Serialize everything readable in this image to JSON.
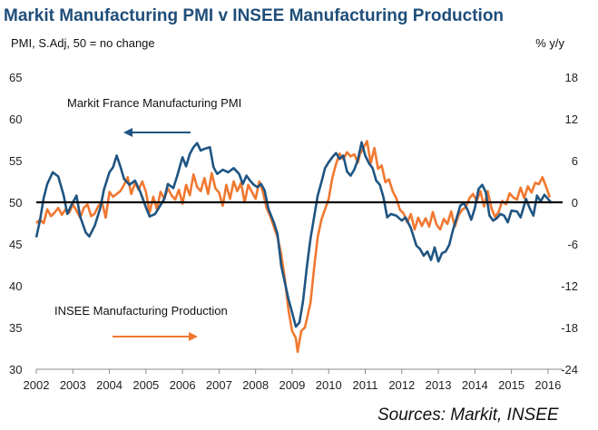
{
  "chart_data": {
    "type": "line",
    "title": "Markit Manufacturing PMI v INSEE Manufacturing Production",
    "left_axis_label": "PMI, S.Adj, 50 = no change",
    "right_axis_label": "% y/y",
    "source": "Sources: Markit, INSEE",
    "x_range": [
      2002,
      2016.4
    ],
    "x_ticks": [
      "2002",
      "2003",
      "2004",
      "2005",
      "2006",
      "2007",
      "2008",
      "2009",
      "2010",
      "2011",
      "2012",
      "2013",
      "2014",
      "2015",
      "2016"
    ],
    "left_axis": {
      "min": 30,
      "max": 65,
      "ticks": [
        "30",
        "35",
        "40",
        "45",
        "50",
        "55",
        "60",
        "65"
      ]
    },
    "right_axis": {
      "min": -24,
      "max": 18,
      "ticks": [
        "-24",
        "-18",
        "-12",
        "-6",
        "0",
        "6",
        "12",
        "18"
      ]
    },
    "reference_line": {
      "axis": "left",
      "value": 50
    },
    "series": [
      {
        "name": "Markit France Manufacturing PMI",
        "axis": "left",
        "color": "#1f5582",
        "arrow": "left",
        "points": [
          [
            2002.0,
            45.8
          ],
          [
            2002.1,
            47.8
          ],
          [
            2002.2,
            50.5
          ],
          [
            2002.3,
            52.2
          ],
          [
            2002.45,
            53.6
          ],
          [
            2002.6,
            53.1
          ],
          [
            2002.75,
            50.8
          ],
          [
            2002.85,
            48.6
          ],
          [
            2002.95,
            49.6
          ],
          [
            2003.1,
            50.8
          ],
          [
            2003.2,
            48.3
          ],
          [
            2003.35,
            46.4
          ],
          [
            2003.45,
            45.9
          ],
          [
            2003.6,
            47.2
          ],
          [
            2003.75,
            49.3
          ],
          [
            2003.85,
            51.5
          ],
          [
            2004.0,
            53.6
          ],
          [
            2004.1,
            54.2
          ],
          [
            2004.2,
            55.6
          ],
          [
            2004.3,
            54.3
          ],
          [
            2004.4,
            52.8
          ],
          [
            2004.55,
            52.1
          ],
          [
            2004.7,
            52.6
          ],
          [
            2004.85,
            51.2
          ],
          [
            2005.0,
            49.4
          ],
          [
            2005.1,
            48.3
          ],
          [
            2005.25,
            48.6
          ],
          [
            2005.35,
            49.3
          ],
          [
            2005.5,
            50.4
          ],
          [
            2005.6,
            52.2
          ],
          [
            2005.75,
            51.7
          ],
          [
            2005.85,
            53.1
          ],
          [
            2006.0,
            55.4
          ],
          [
            2006.1,
            54.3
          ],
          [
            2006.2,
            55.8
          ],
          [
            2006.3,
            56.6
          ],
          [
            2006.4,
            57.1
          ],
          [
            2006.5,
            56.2
          ],
          [
            2006.6,
            56.4
          ],
          [
            2006.75,
            56.6
          ],
          [
            2006.85,
            54.2
          ],
          [
            2006.95,
            53.4
          ],
          [
            2007.1,
            53.9
          ],
          [
            2007.25,
            53.6
          ],
          [
            2007.4,
            54.1
          ],
          [
            2007.55,
            53.4
          ],
          [
            2007.65,
            52.2
          ],
          [
            2007.75,
            53.2
          ],
          [
            2007.85,
            52.6
          ],
          [
            2007.95,
            52.1
          ],
          [
            2008.05,
            51.8
          ],
          [
            2008.15,
            52.2
          ],
          [
            2008.25,
            51.4
          ],
          [
            2008.35,
            49.2
          ],
          [
            2008.5,
            47.6
          ],
          [
            2008.6,
            46.2
          ],
          [
            2008.7,
            42.4
          ],
          [
            2008.8,
            40.4
          ],
          [
            2008.9,
            38.4
          ],
          [
            2009.0,
            36.8
          ],
          [
            2009.1,
            35.1
          ],
          [
            2009.2,
            35.6
          ],
          [
            2009.3,
            38.2
          ],
          [
            2009.4,
            42.2
          ],
          [
            2009.5,
            45.6
          ],
          [
            2009.6,
            48.2
          ],
          [
            2009.7,
            50.8
          ],
          [
            2009.8,
            52.4
          ],
          [
            2009.9,
            54.1
          ],
          [
            2010.0,
            54.8
          ],
          [
            2010.1,
            55.4
          ],
          [
            2010.2,
            55.9
          ],
          [
            2010.3,
            55.2
          ],
          [
            2010.4,
            55.6
          ],
          [
            2010.5,
            53.7
          ],
          [
            2010.6,
            53.2
          ],
          [
            2010.7,
            53.9
          ],
          [
            2010.8,
            55.1
          ],
          [
            2010.9,
            57.2
          ],
          [
            2011.0,
            55.6
          ],
          [
            2011.1,
            54.7
          ],
          [
            2011.2,
            54.1
          ],
          [
            2011.3,
            52.6
          ],
          [
            2011.4,
            52.1
          ],
          [
            2011.5,
            50.6
          ],
          [
            2011.6,
            48.2
          ],
          [
            2011.7,
            48.6
          ],
          [
            2011.85,
            48.4
          ],
          [
            2012.0,
            47.8
          ],
          [
            2012.1,
            48.2
          ],
          [
            2012.25,
            46.9
          ],
          [
            2012.4,
            44.8
          ],
          [
            2012.5,
            44.4
          ],
          [
            2012.6,
            43.6
          ],
          [
            2012.7,
            44.1
          ],
          [
            2012.8,
            43.1
          ],
          [
            2012.9,
            44.6
          ],
          [
            2013.0,
            42.9
          ],
          [
            2013.1,
            43.9
          ],
          [
            2013.2,
            44.1
          ],
          [
            2013.3,
            44.9
          ],
          [
            2013.4,
            46.7
          ],
          [
            2013.5,
            48.1
          ],
          [
            2013.6,
            49.6
          ],
          [
            2013.7,
            49.9
          ],
          [
            2013.8,
            49.1
          ],
          [
            2013.9,
            47.9
          ],
          [
            2014.0,
            49.3
          ],
          [
            2014.1,
            51.6
          ],
          [
            2014.2,
            52.1
          ],
          [
            2014.3,
            51.2
          ],
          [
            2014.4,
            48.4
          ],
          [
            2014.5,
            47.8
          ],
          [
            2014.6,
            48.1
          ],
          [
            2014.7,
            48.6
          ],
          [
            2014.8,
            48.4
          ],
          [
            2014.9,
            47.6
          ],
          [
            2015.0,
            49.0
          ],
          [
            2015.15,
            48.9
          ],
          [
            2015.25,
            48.2
          ],
          [
            2015.4,
            50.4
          ],
          [
            2015.5,
            49.3
          ],
          [
            2015.6,
            48.4
          ],
          [
            2015.7,
            50.8
          ],
          [
            2015.8,
            50.1
          ],
          [
            2015.9,
            50.9
          ],
          [
            2016.0,
            50.4
          ],
          [
            2016.1,
            49.9
          ]
        ]
      },
      {
        "name": "INSEE Manufacturing Production",
        "axis": "right",
        "color": "#f07830",
        "arrow": "right",
        "points": [
          [
            2002.0,
            -3.0
          ],
          [
            2002.1,
            -2.5
          ],
          [
            2002.2,
            -3.0
          ],
          [
            2002.3,
            -1.0
          ],
          [
            2002.4,
            -2.0
          ],
          [
            2002.5,
            -1.5
          ],
          [
            2002.6,
            -0.8
          ],
          [
            2002.7,
            -1.8
          ],
          [
            2002.8,
            -1.0
          ],
          [
            2002.9,
            -1.5
          ],
          [
            2003.0,
            -0.3
          ],
          [
            2003.1,
            -1.2
          ],
          [
            2003.2,
            -2.2
          ],
          [
            2003.3,
            -0.8
          ],
          [
            2003.4,
            -0.3
          ],
          [
            2003.5,
            -2.0
          ],
          [
            2003.6,
            -1.6
          ],
          [
            2003.7,
            -0.5
          ],
          [
            2003.8,
            0.0
          ],
          [
            2003.9,
            -2.2
          ],
          [
            2004.0,
            1.5
          ],
          [
            2004.1,
            0.8
          ],
          [
            2004.2,
            1.2
          ],
          [
            2004.3,
            1.6
          ],
          [
            2004.4,
            2.5
          ],
          [
            2004.5,
            3.6
          ],
          [
            2004.6,
            1.2
          ],
          [
            2004.7,
            2.8
          ],
          [
            2004.8,
            1.8
          ],
          [
            2004.9,
            3.0
          ],
          [
            2005.0,
            1.5
          ],
          [
            2005.1,
            -1.5
          ],
          [
            2005.2,
            0.8
          ],
          [
            2005.3,
            -1.0
          ],
          [
            2005.4,
            1.5
          ],
          [
            2005.5,
            0.5
          ],
          [
            2005.6,
            2.0
          ],
          [
            2005.7,
            1.0
          ],
          [
            2005.8,
            0.4
          ],
          [
            2005.9,
            1.8
          ],
          [
            2006.0,
            -0.2
          ],
          [
            2006.1,
            2.5
          ],
          [
            2006.2,
            1.0
          ],
          [
            2006.3,
            4.0
          ],
          [
            2006.4,
            2.2
          ],
          [
            2006.5,
            1.6
          ],
          [
            2006.6,
            3.5
          ],
          [
            2006.7,
            1.2
          ],
          [
            2006.8,
            4.2
          ],
          [
            2006.9,
            2.0
          ],
          [
            2007.0,
            1.4
          ],
          [
            2007.1,
            -0.5
          ],
          [
            2007.2,
            2.5
          ],
          [
            2007.3,
            0.5
          ],
          [
            2007.4,
            3.0
          ],
          [
            2007.5,
            1.6
          ],
          [
            2007.6,
            2.8
          ],
          [
            2007.7,
            0.0
          ],
          [
            2007.8,
            2.5
          ],
          [
            2007.9,
            1.5
          ],
          [
            2008.0,
            0.5
          ],
          [
            2008.1,
            3.0
          ],
          [
            2008.2,
            1.5
          ],
          [
            2008.3,
            -0.8
          ],
          [
            2008.4,
            -2.0
          ],
          [
            2008.5,
            -3.5
          ],
          [
            2008.6,
            -5.0
          ],
          [
            2008.7,
            -7.5
          ],
          [
            2008.8,
            -11.0
          ],
          [
            2008.9,
            -15.5
          ],
          [
            2009.0,
            -18.5
          ],
          [
            2009.1,
            -19.5
          ],
          [
            2009.15,
            -21.5
          ],
          [
            2009.25,
            -18.5
          ],
          [
            2009.35,
            -18.0
          ],
          [
            2009.5,
            -14.5
          ],
          [
            2009.6,
            -9.5
          ],
          [
            2009.7,
            -5.0
          ],
          [
            2009.8,
            -2.5
          ],
          [
            2009.9,
            -1.0
          ],
          [
            2010.0,
            0.5
          ],
          [
            2010.1,
            3.5
          ],
          [
            2010.2,
            5.5
          ],
          [
            2010.3,
            7.0
          ],
          [
            2010.4,
            6.2
          ],
          [
            2010.5,
            7.2
          ],
          [
            2010.6,
            6.6
          ],
          [
            2010.7,
            6.9
          ],
          [
            2010.8,
            5.7
          ],
          [
            2010.85,
            6.9
          ],
          [
            2010.95,
            7.8
          ],
          [
            2011.05,
            8.8
          ],
          [
            2011.15,
            5.6
          ],
          [
            2011.25,
            7.8
          ],
          [
            2011.35,
            4.8
          ],
          [
            2011.45,
            5.3
          ],
          [
            2011.55,
            2.9
          ],
          [
            2011.65,
            3.3
          ],
          [
            2011.75,
            1.6
          ],
          [
            2011.85,
            0.6
          ],
          [
            2011.95,
            -1.1
          ],
          [
            2012.05,
            -1.6
          ],
          [
            2012.15,
            -2.9
          ],
          [
            2012.25,
            -1.7
          ],
          [
            2012.35,
            -3.9
          ],
          [
            2012.45,
            -2.2
          ],
          [
            2012.55,
            -3.4
          ],
          [
            2012.65,
            -2.3
          ],
          [
            2012.75,
            -3.5
          ],
          [
            2012.85,
            -1.4
          ],
          [
            2012.95,
            -3.2
          ],
          [
            2013.05,
            -3.9
          ],
          [
            2013.15,
            -2.4
          ],
          [
            2013.25,
            -3.1
          ],
          [
            2013.35,
            -1.3
          ],
          [
            2013.45,
            -3.5
          ],
          [
            2013.55,
            -1.9
          ],
          [
            2013.65,
            -1.1
          ],
          [
            2013.75,
            -0.7
          ],
          [
            2013.85,
            0.6
          ],
          [
            2013.95,
            1.2
          ],
          [
            2014.05,
            0.2
          ],
          [
            2014.15,
            1.6
          ],
          [
            2014.25,
            -0.6
          ],
          [
            2014.35,
            1.6
          ],
          [
            2014.45,
            -0.8
          ],
          [
            2014.55,
            -2.1
          ],
          [
            2014.65,
            -1.4
          ],
          [
            2014.75,
            0.2
          ],
          [
            2014.85,
            -0.3
          ],
          [
            2014.95,
            1.3
          ],
          [
            2015.05,
            0.7
          ],
          [
            2015.15,
            0.4
          ],
          [
            2015.25,
            2.1
          ],
          [
            2015.35,
            0.6
          ],
          [
            2015.45,
            2.3
          ],
          [
            2015.55,
            1.4
          ],
          [
            2015.65,
            2.8
          ],
          [
            2015.75,
            2.6
          ],
          [
            2015.85,
            3.6
          ],
          [
            2015.95,
            2.2
          ],
          [
            2016.05,
            0.7
          ]
        ]
      }
    ]
  }
}
